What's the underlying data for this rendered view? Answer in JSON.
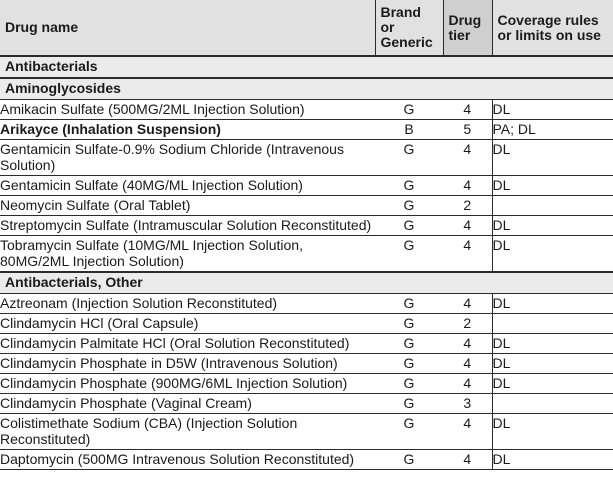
{
  "colors": {
    "header_bg": "#e1e1e1",
    "tier_header_bg": "#cfcfcf",
    "tier_cell_bg": "#d5d5d5",
    "section_bg": "#ebebeb",
    "border": "#2b2b2b",
    "text": "#1a1a1a"
  },
  "table": {
    "headers": [
      {
        "id": "drug_name",
        "label": "Drug name"
      },
      {
        "id": "brand_or_generic",
        "label": "Brand\nor\nGeneric"
      },
      {
        "id": "drug_tier",
        "label": "Drug\ntier"
      },
      {
        "id": "coverage",
        "label": "Coverage rules\nor limits on use"
      }
    ],
    "rows": [
      {
        "type": "section",
        "label": "Antibacterials"
      },
      {
        "type": "section",
        "label": "Aminoglycosides"
      },
      {
        "type": "drug",
        "bold": false,
        "name": "Amikacin Sulfate (500MG/2ML Injection Solution)",
        "brand_or_generic": "G",
        "tier": "4",
        "coverage": "DL"
      },
      {
        "type": "drug",
        "bold": true,
        "name": "Arikayce (Inhalation Suspension)",
        "brand_or_generic": "B",
        "tier": "5",
        "coverage": "PA; DL"
      },
      {
        "type": "drug",
        "bold": false,
        "name": "Gentamicin Sulfate-0.9% Sodium Chloride (Intravenous Solution)",
        "brand_or_generic": "G",
        "tier": "4",
        "coverage": "DL"
      },
      {
        "type": "drug",
        "bold": false,
        "name": "Gentamicin Sulfate (40MG/ML Injection Solution)",
        "brand_or_generic": "G",
        "tier": "4",
        "coverage": "DL"
      },
      {
        "type": "drug",
        "bold": false,
        "name": "Neomycin Sulfate (Oral Tablet)",
        "brand_or_generic": "G",
        "tier": "2",
        "coverage": ""
      },
      {
        "type": "drug",
        "bold": false,
        "name": "Streptomycin Sulfate (Intramuscular Solution Reconstituted)",
        "brand_or_generic": "G",
        "tier": "4",
        "coverage": "DL"
      },
      {
        "type": "drug",
        "bold": false,
        "name": "Tobramycin Sulfate (10MG/ML Injection Solution, 80MG/2ML Injection Solution)",
        "brand_or_generic": "G",
        "tier": "4",
        "coverage": "DL"
      },
      {
        "type": "section",
        "label": "Antibacterials, Other"
      },
      {
        "type": "drug",
        "bold": false,
        "name": "Aztreonam (Injection Solution Reconstituted)",
        "brand_or_generic": "G",
        "tier": "4",
        "coverage": "DL"
      },
      {
        "type": "drug",
        "bold": false,
        "name": "Clindamycin HCl (Oral Capsule)",
        "brand_or_generic": "G",
        "tier": "2",
        "coverage": ""
      },
      {
        "type": "drug",
        "bold": false,
        "name": "Clindamycin Palmitate HCl (Oral Solution Reconstituted)",
        "brand_or_generic": "G",
        "tier": "4",
        "coverage": "DL"
      },
      {
        "type": "drug",
        "bold": false,
        "name": "Clindamycin Phosphate in D5W (Intravenous Solution)",
        "brand_or_generic": "G",
        "tier": "4",
        "coverage": "DL"
      },
      {
        "type": "drug",
        "bold": false,
        "name": "Clindamycin Phosphate (900MG/6ML Injection Solution)",
        "brand_or_generic": "G",
        "tier": "4",
        "coverage": "DL"
      },
      {
        "type": "drug",
        "bold": false,
        "name": "Clindamycin Phosphate (Vaginal Cream)",
        "brand_or_generic": "G",
        "tier": "3",
        "coverage": ""
      },
      {
        "type": "drug",
        "bold": false,
        "name": "Colistimethate Sodium (CBA) (Injection Solution Reconstituted)",
        "brand_or_generic": "G",
        "tier": "4",
        "coverage": "DL"
      },
      {
        "type": "drug",
        "bold": false,
        "name": "Daptomycin (500MG Intravenous Solution Reconstituted)",
        "brand_or_generic": "G",
        "tier": "4",
        "coverage": "DL"
      }
    ]
  }
}
